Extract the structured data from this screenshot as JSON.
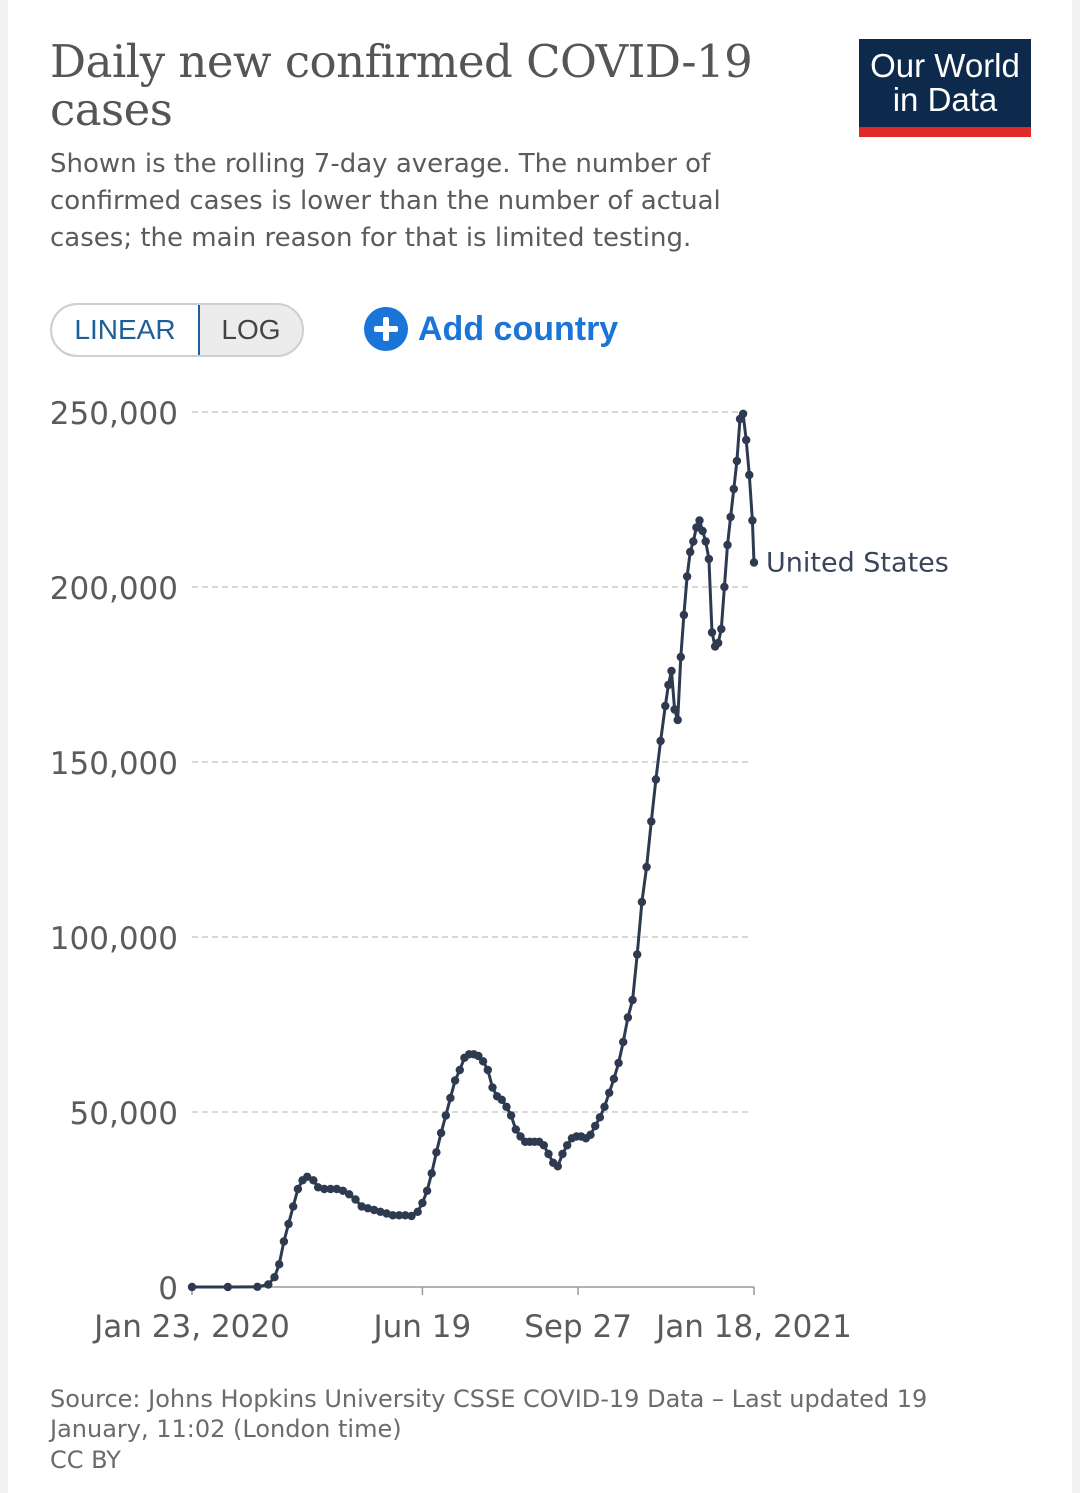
{
  "header": {
    "title": "Daily new confirmed COVID-19 cases",
    "subtitle": "Shown is the rolling 7-day average. The number of confirmed cases is lower than the number of actual cases; the main reason for that is limited testing.",
    "logo_line1": "Our World",
    "logo_line2": "in Data"
  },
  "controls": {
    "linear_label": "LINEAR",
    "log_label": "LOG",
    "selected_scale": "linear",
    "add_country_label": "Add country"
  },
  "footer": {
    "source": "Source: Johns Hopkins University CSSE COVID-19 Data – Last updated 19 January, 11:02 (London time)",
    "license": "CC BY"
  },
  "colors": {
    "series": "#2e3a50",
    "logo_bg": "#0d2a4d",
    "logo_bar": "#e02a2a",
    "accent": "#1b75d8"
  },
  "chart_data": {
    "type": "line",
    "title": "Daily new confirmed COVID-19 cases",
    "xlabel": "",
    "ylabel": "",
    "x_range": [
      "2020-01-23",
      "2021-01-18"
    ],
    "ylim": [
      0,
      250000
    ],
    "y_ticks": [
      0,
      50000,
      100000,
      150000,
      200000,
      250000
    ],
    "y_tick_labels": [
      "0",
      "50,000",
      "100,000",
      "150,000",
      "200,000",
      "250,000"
    ],
    "x_ticks": [
      "2020-01-23",
      "2020-06-19",
      "2020-09-27",
      "2021-01-18"
    ],
    "x_tick_labels": [
      "Jan 23, 2020",
      "Jun 19",
      "Sep 27",
      "Jan 18, 2021"
    ],
    "grid": "horizontal dashed",
    "markers": true,
    "series": [
      {
        "name": "United States",
        "points": [
          [
            "2020-01-23",
            0
          ],
          [
            "2020-02-15",
            0
          ],
          [
            "2020-03-05",
            50
          ],
          [
            "2020-03-12",
            700
          ],
          [
            "2020-03-16",
            2800
          ],
          [
            "2020-03-19",
            6500
          ],
          [
            "2020-03-22",
            13000
          ],
          [
            "2020-03-25",
            18000
          ],
          [
            "2020-03-28",
            23000
          ],
          [
            "2020-03-31",
            28000
          ],
          [
            "2020-04-03",
            30500
          ],
          [
            "2020-04-06",
            31500
          ],
          [
            "2020-04-10",
            30500
          ],
          [
            "2020-04-13",
            28500
          ],
          [
            "2020-04-17",
            28000
          ],
          [
            "2020-04-21",
            28000
          ],
          [
            "2020-04-25",
            28000
          ],
          [
            "2020-04-29",
            27500
          ],
          [
            "2020-05-03",
            26500
          ],
          [
            "2020-05-07",
            25000
          ],
          [
            "2020-05-11",
            23000
          ],
          [
            "2020-05-15",
            22500
          ],
          [
            "2020-05-19",
            22000
          ],
          [
            "2020-05-23",
            21500
          ],
          [
            "2020-05-27",
            21000
          ],
          [
            "2020-05-31",
            20500
          ],
          [
            "2020-06-04",
            20500
          ],
          [
            "2020-06-08",
            20500
          ],
          [
            "2020-06-12",
            20300
          ],
          [
            "2020-06-16",
            21500
          ],
          [
            "2020-06-19",
            24000
          ],
          [
            "2020-06-22",
            27500
          ],
          [
            "2020-06-25",
            32500
          ],
          [
            "2020-06-28",
            38500
          ],
          [
            "2020-07-01",
            44000
          ],
          [
            "2020-07-04",
            49000
          ],
          [
            "2020-07-07",
            54000
          ],
          [
            "2020-07-10",
            59000
          ],
          [
            "2020-07-13",
            62000
          ],
          [
            "2020-07-16",
            65500
          ],
          [
            "2020-07-19",
            66500
          ],
          [
            "2020-07-22",
            66500
          ],
          [
            "2020-07-25",
            66000
          ],
          [
            "2020-07-28",
            64500
          ],
          [
            "2020-07-31",
            62000
          ],
          [
            "2020-08-03",
            57000
          ],
          [
            "2020-08-06",
            54500
          ],
          [
            "2020-08-09",
            53500
          ],
          [
            "2020-08-12",
            51500
          ],
          [
            "2020-08-15",
            49000
          ],
          [
            "2020-08-18",
            45000
          ],
          [
            "2020-08-21",
            43000
          ],
          [
            "2020-08-24",
            41500
          ],
          [
            "2020-08-27",
            41500
          ],
          [
            "2020-08-30",
            41500
          ],
          [
            "2020-09-02",
            41500
          ],
          [
            "2020-09-05",
            40500
          ],
          [
            "2020-09-08",
            38000
          ],
          [
            "2020-09-11",
            35500
          ],
          [
            "2020-09-14",
            34500
          ],
          [
            "2020-09-17",
            38000
          ],
          [
            "2020-09-20",
            40500
          ],
          [
            "2020-09-23",
            42500
          ],
          [
            "2020-09-26",
            43000
          ],
          [
            "2020-09-29",
            43000
          ],
          [
            "2020-10-02",
            42500
          ],
          [
            "2020-10-05",
            43500
          ],
          [
            "2020-10-08",
            46000
          ],
          [
            "2020-10-11",
            48500
          ],
          [
            "2020-10-14",
            51500
          ],
          [
            "2020-10-17",
            55500
          ],
          [
            "2020-10-20",
            59500
          ],
          [
            "2020-10-23",
            64000
          ],
          [
            "2020-10-26",
            70000
          ],
          [
            "2020-10-29",
            77000
          ],
          [
            "2020-11-01",
            82000
          ],
          [
            "2020-11-04",
            95000
          ],
          [
            "2020-11-07",
            110000
          ],
          [
            "2020-11-10",
            120000
          ],
          [
            "2020-11-13",
            133000
          ],
          [
            "2020-11-16",
            145000
          ],
          [
            "2020-11-19",
            156000
          ],
          [
            "2020-11-22",
            166000
          ],
          [
            "2020-11-24",
            172000
          ],
          [
            "2020-11-26",
            176000
          ],
          [
            "2020-11-28",
            165000
          ],
          [
            "2020-11-30",
            162000
          ],
          [
            "2020-12-02",
            180000
          ],
          [
            "2020-12-04",
            192000
          ],
          [
            "2020-12-06",
            203000
          ],
          [
            "2020-12-08",
            210000
          ],
          [
            "2020-12-10",
            213000
          ],
          [
            "2020-12-12",
            217000
          ],
          [
            "2020-12-14",
            219000
          ],
          [
            "2020-12-16",
            216000
          ],
          [
            "2020-12-18",
            213000
          ],
          [
            "2020-12-20",
            208000
          ],
          [
            "2020-12-22",
            187000
          ],
          [
            "2020-12-24",
            183000
          ],
          [
            "2020-12-26",
            184000
          ],
          [
            "2020-12-28",
            188000
          ],
          [
            "2020-12-30",
            200000
          ],
          [
            "2021-01-01",
            212000
          ],
          [
            "2021-01-03",
            220000
          ],
          [
            "2021-01-05",
            228000
          ],
          [
            "2021-01-07",
            236000
          ],
          [
            "2021-01-09",
            248000
          ],
          [
            "2021-01-11",
            249500
          ],
          [
            "2021-01-13",
            242000
          ],
          [
            "2021-01-15",
            232000
          ],
          [
            "2021-01-17",
            219000
          ],
          [
            "2021-01-18",
            207000
          ]
        ]
      }
    ]
  }
}
